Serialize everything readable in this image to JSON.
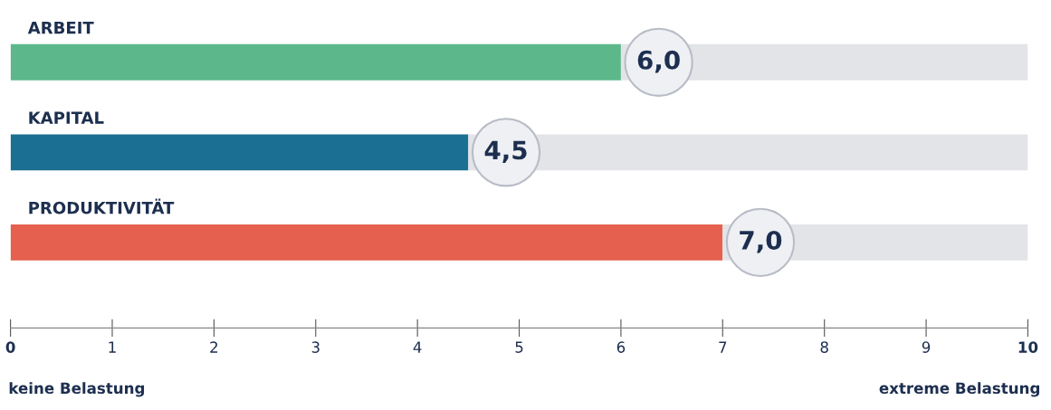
{
  "chart_data": {
    "type": "bar",
    "orientation": "horizontal",
    "stacked": true,
    "categories": [
      "ARBEIT",
      "KAPITAL",
      "PRODUKTIVITÄT"
    ],
    "series": [
      {
        "colors": [
          "#5cb88a",
          "#1b6f92",
          "#e5604e"
        ],
        "values": [
          6.0,
          4.5,
          7.0
        ],
        "value_labels": [
          "6,0",
          "4,5",
          "7,0"
        ]
      },
      {
        "color": "#e3e4e7",
        "values": [
          4.0,
          5.5,
          3.0
        ]
      }
    ],
    "xlim": [
      0,
      10
    ],
    "xticks": [
      0,
      1,
      2,
      3,
      4,
      5,
      6,
      7,
      8,
      9,
      10
    ],
    "annotations": [
      "keine Belastung",
      "extreme Belastung"
    ],
    "grid": false,
    "legend": false
  }
}
